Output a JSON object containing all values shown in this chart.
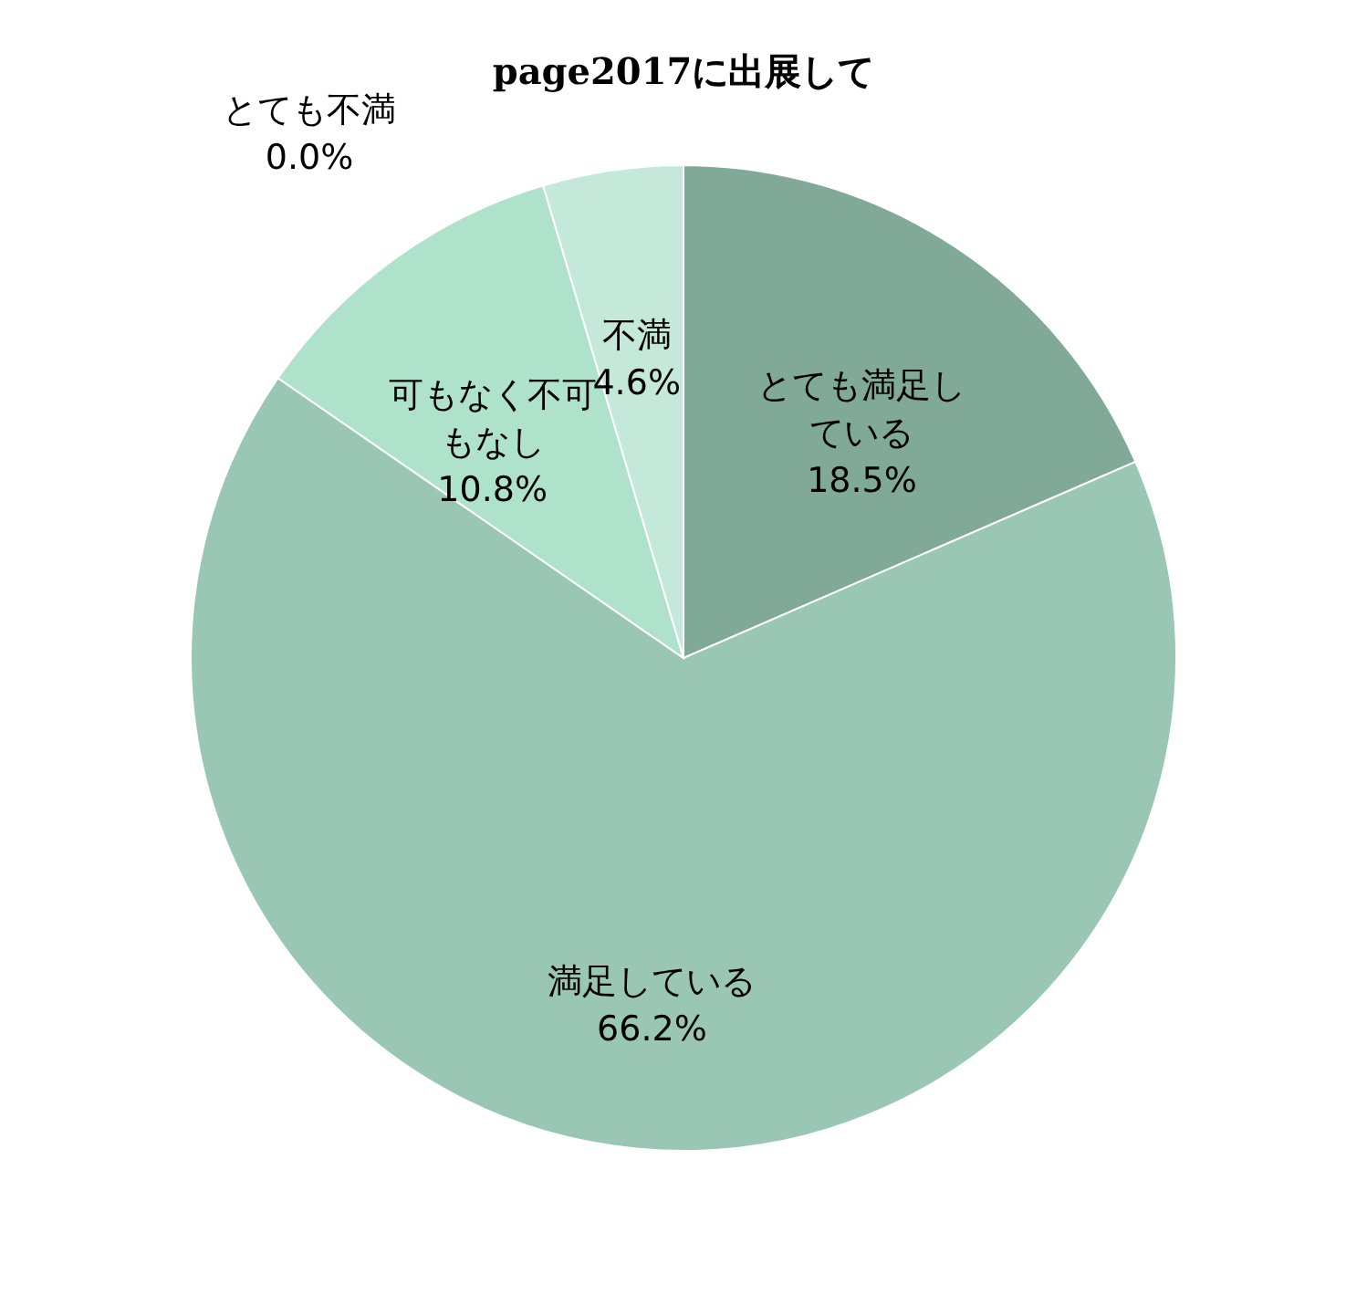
{
  "chart_data": {
    "type": "pie",
    "title": "page2017に出展して",
    "categories": [
      "とても満足している",
      "満足している",
      "可もなく不可もなし",
      "不満",
      "とても不満"
    ],
    "values": [
      18.5,
      66.2,
      10.8,
      4.6,
      0.0
    ],
    "value_labels": [
      "18.5%",
      "66.2%",
      "10.8%",
      "4.6%",
      "0.0%"
    ],
    "colors": [
      "#80a998",
      "#9ac6b4",
      "#aee2ca",
      "#c4e8d9",
      "#d4f0e4"
    ],
    "legend": false
  }
}
